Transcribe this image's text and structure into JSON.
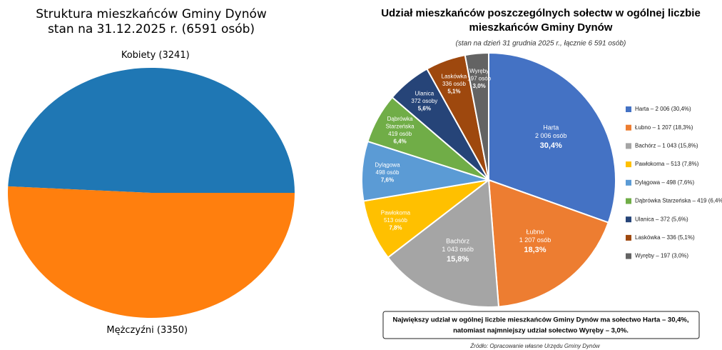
{
  "chart_data": [
    {
      "type": "pie",
      "title": [
        "Struktura mieszkańców Gminy Dynów",
        "stan na 31.12.2025 r. (6591 osób)"
      ],
      "categories": [
        "Kobiety (3241)",
        "Mężczyźni (3350)"
      ],
      "values": [
        3241,
        3350
      ],
      "colors": [
        "#1f77b4",
        "#ff7f0e"
      ]
    },
    {
      "type": "pie",
      "title": [
        "Udział mieszkańców poszczególnych sołectw w ogólnej liczbie",
        "mieszkańców Gminy Dynów"
      ],
      "subtitle": "(stan na dzień 31 grudnia 2025 r., łącznie 6 591 osób)",
      "categories": [
        "Harta",
        "Łubno",
        "Bachórz",
        "Pawłokoma",
        "Dylągowa",
        "Dąbrówka Starzeńska",
        "Ulanica",
        "Laskówka",
        "Wyręby"
      ],
      "values": [
        2006,
        1207,
        1043,
        513,
        498,
        419,
        372,
        336,
        197
      ],
      "value_labels": [
        "2 006 osób",
        "1 207 osób",
        "1 043 osób",
        "513 osób",
        "498 osób",
        "419 osób",
        "372 osoby",
        "336 osób",
        "197 osób"
      ],
      "percent_labels": [
        "30,4%",
        "18,3%",
        "15,8%",
        "7,8%",
        "7,6%",
        "6,4%",
        "5,6%",
        "5,1%",
        "3,0%"
      ],
      "legend_labels": [
        "Harta – 2 006 (30,4%)",
        "Łubno – 1 207 (18,3%)",
        "Bachórz – 1 043 (15,8%)",
        "Pawłokoma – 513 (7,8%)",
        "Dylągowa – 498 (7,6%)",
        "Dąbrówka Starzeńska – 419 (6,4%)",
        "Ulanica – 372 (5,6%)",
        "Laskówka – 336 (5,1%)",
        "Wyręby – 197 (3,0%)"
      ],
      "colors": [
        "#4472c4",
        "#ed7d31",
        "#a5a5a5",
        "#ffc000",
        "#5b9bd5",
        "#70ad47",
        "#264478",
        "#9e480e",
        "#636363"
      ],
      "note": [
        "Największy udział w ogólnej liczbie mieszkańców Gminy Dynów ma sołectwo Harta – 30,4%,",
        "natomiast najmniejszy udział sołectwo Wyręby – 3,0%."
      ],
      "source": "Źródło: Opracowanie własne Urzędu Gminy Dynów"
    }
  ]
}
